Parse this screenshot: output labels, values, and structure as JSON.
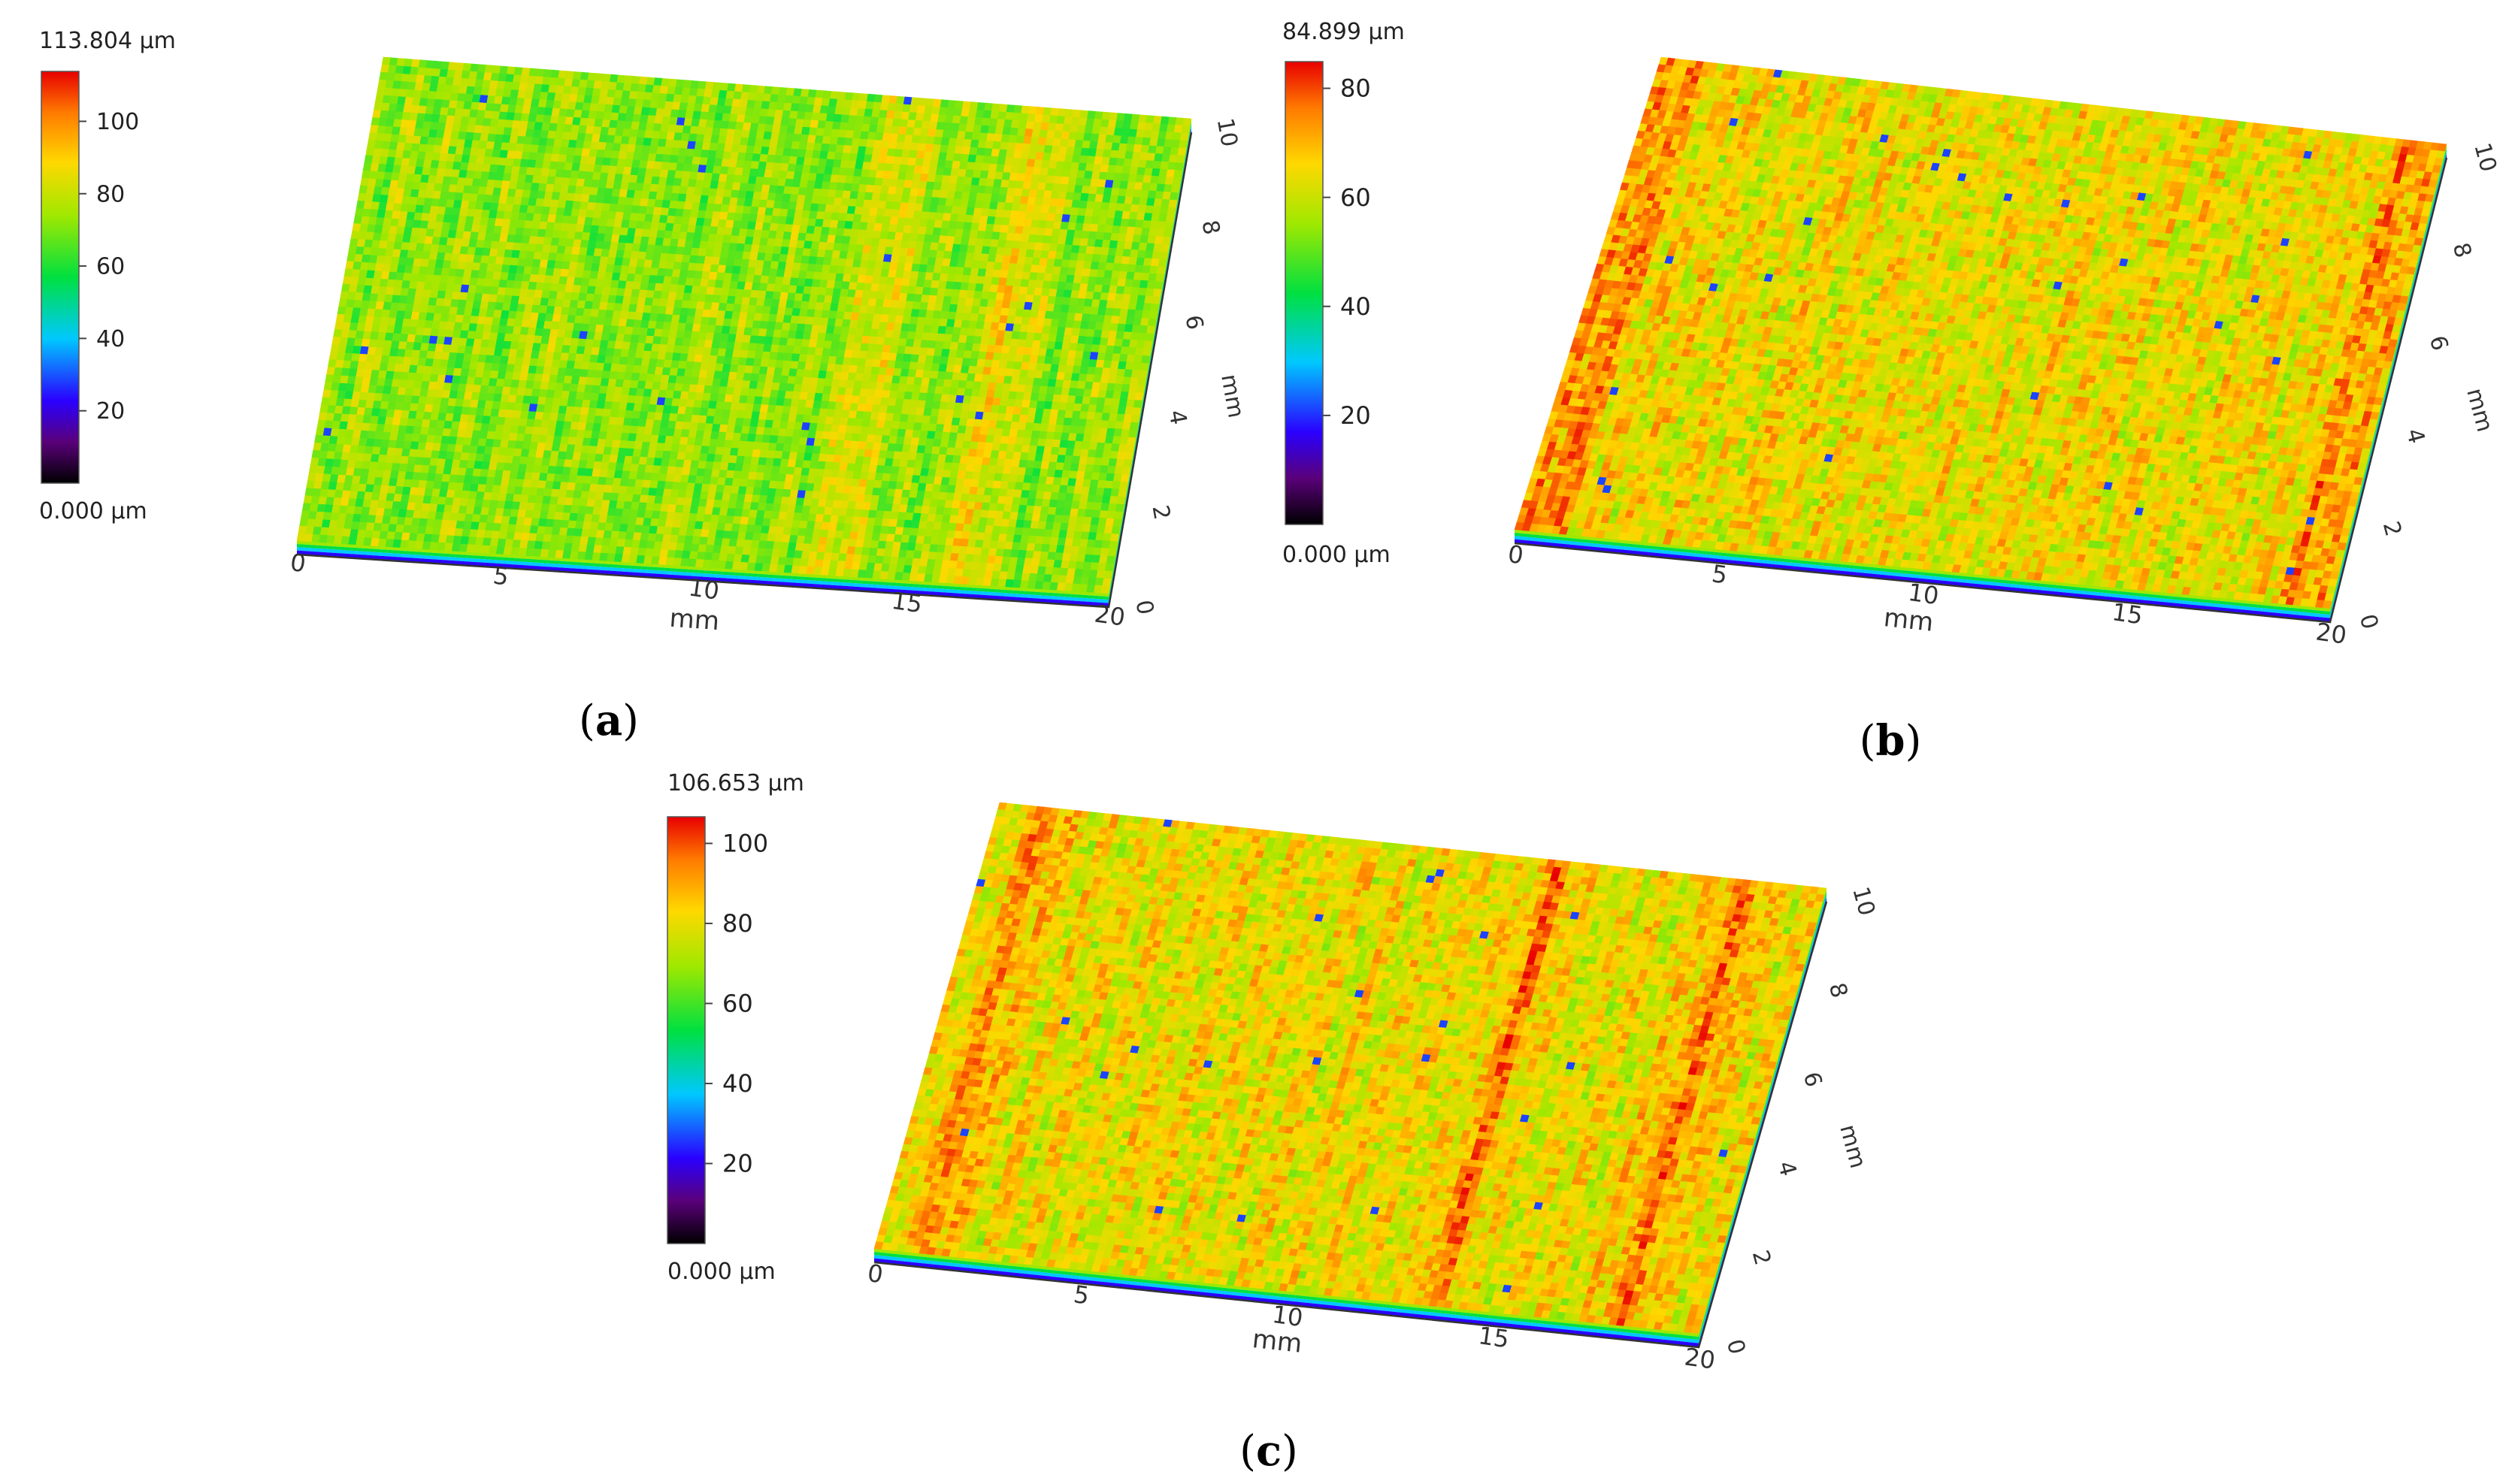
{
  "chart_data": [
    {
      "type": "heatmap",
      "panel_label": "a",
      "colorbar": {
        "max_label": "113.804 μm",
        "min_label": "0.000 μm",
        "max": 113.804,
        "ticks": [
          20,
          40,
          60,
          80,
          100
        ]
      },
      "x_axis": {
        "label": "mm",
        "ticks": [
          0,
          5,
          10,
          15,
          20
        ],
        "range": [
          0,
          20
        ]
      },
      "y_axis": {
        "label": "mm",
        "ticks": [
          0,
          2,
          4,
          6,
          8,
          10
        ],
        "range": [
          0,
          10
        ]
      },
      "surface": {
        "base_level": 73,
        "variation": 12,
        "red_bands": [
          0.66,
          0.82
        ]
      }
    },
    {
      "type": "heatmap",
      "panel_label": "b",
      "colorbar": {
        "max_label": "84.899 μm",
        "min_label": "0.000 μm",
        "max": 84.899,
        "ticks": [
          20,
          40,
          60,
          80
        ]
      },
      "x_axis": {
        "label": "mm",
        "ticks": [
          0,
          5,
          10,
          15,
          20
        ],
        "range": [
          0,
          20
        ]
      },
      "y_axis": {
        "label": "mm",
        "ticks": [
          0,
          2,
          4,
          6,
          8,
          10
        ],
        "range": [
          0,
          10
        ]
      },
      "surface": {
        "base_level": 64,
        "variation": 10,
        "red_bands": [
          0.03,
          0.96
        ]
      }
    },
    {
      "type": "heatmap",
      "panel_label": "c",
      "colorbar": {
        "max_label": "106.653 μm",
        "min_label": "0.000 μm",
        "max": 106.653,
        "ticks": [
          20,
          40,
          60,
          80,
          100
        ]
      },
      "x_axis": {
        "label": "mm",
        "ticks": [
          0,
          5,
          10,
          15,
          20
        ],
        "range": [
          0,
          20
        ]
      },
      "y_axis": {
        "label": "mm",
        "ticks": [
          0,
          2,
          4,
          6,
          8,
          10
        ],
        "range": [
          0,
          10
        ]
      },
      "surface": {
        "base_level": 80,
        "variation": 12,
        "red_bands": [
          0.06,
          0.68,
          0.9
        ]
      }
    }
  ]
}
